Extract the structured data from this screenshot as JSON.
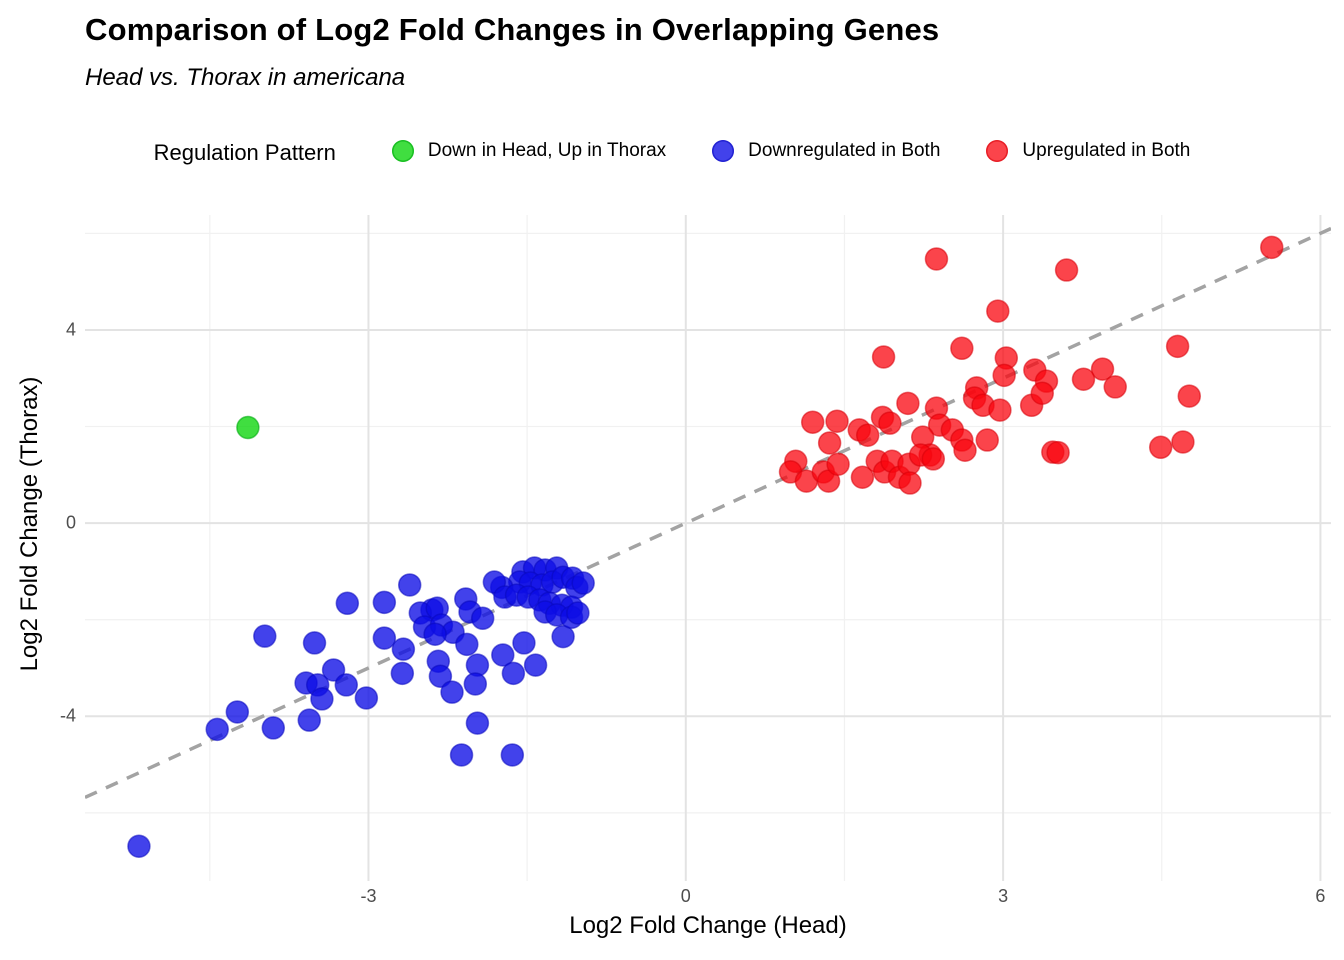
{
  "page": {
    "title": "Comparison of Log2 Fold Changes in Overlapping Genes",
    "subtitle": "Head vs. Thorax in americana"
  },
  "legend": {
    "title": "Regulation Pattern",
    "items": [
      {
        "label": "Down in Head, Up in Thorax",
        "color_key": "green"
      },
      {
        "label": "Downregulated in Both",
        "color_key": "blue"
      },
      {
        "label": "Upregulated in Both",
        "color_key": "red"
      }
    ]
  },
  "chart_data": {
    "type": "scatter",
    "title": "Comparison of Log2 Fold Changes in Overlapping Genes",
    "subtitle": "Head vs. Thorax in americana",
    "xlabel": "Log2 Fold Change (Head)",
    "ylabel": "Log2 Fold Change (Thorax)",
    "xlim": [
      -5.68,
      6.1
    ],
    "ylim": [
      -7.41,
      6.38
    ],
    "x_ticks": [
      -3,
      0,
      3,
      6
    ],
    "y_ticks": [
      -4,
      0,
      4
    ],
    "x_minor": [
      -4.5,
      -1.5,
      1.5,
      4.5
    ],
    "y_minor": [
      -6,
      -2,
      2,
      6
    ],
    "grid": {
      "major_color": "#e3e3e3",
      "minor_color": "#f1f1f1",
      "background": "#ffffff"
    },
    "reference_line": {
      "type": "identity",
      "slope": 1,
      "intercept": 0,
      "style": "dashed",
      "color": "#a3a3a3"
    },
    "point_radius": 11,
    "legend_position": "top",
    "series": [
      {
        "name": "Down in Head, Up in Thorax",
        "fill": "rgba(0,211,0,0.75)",
        "stroke": "rgba(0,170,15,0.6)",
        "points": [
          [
            -4.14,
            1.98
          ]
        ]
      },
      {
        "name": "Downregulated in Both",
        "fill": "rgba(13,13,230,0.78)",
        "stroke": "rgba(10,10,190,0.55)",
        "points": [
          [
            -3.2,
            -1.66
          ],
          [
            -3.98,
            -2.34
          ],
          [
            -3.51,
            -2.48
          ],
          [
            -3.33,
            -3.04
          ],
          [
            -3.59,
            -3.31
          ],
          [
            -3.48,
            -3.35
          ],
          [
            -3.21,
            -3.35
          ],
          [
            -3.02,
            -3.62
          ],
          [
            -3.44,
            -3.64
          ],
          [
            -4.24,
            -3.91
          ],
          [
            -3.56,
            -4.08
          ],
          [
            -4.43,
            -4.27
          ],
          [
            -3.9,
            -4.24
          ],
          [
            -5.17,
            -6.69
          ],
          [
            -2.61,
            -1.28
          ],
          [
            -2.85,
            -1.64
          ],
          [
            -2.4,
            -1.8
          ],
          [
            -2.08,
            -1.57
          ],
          [
            -2.51,
            -1.86
          ],
          [
            -2.35,
            -1.76
          ],
          [
            -2.47,
            -2.15
          ],
          [
            -2.31,
            -2.11
          ],
          [
            -2.2,
            -2.26
          ],
          [
            -2.37,
            -2.3
          ],
          [
            -2.85,
            -2.38
          ],
          [
            -2.67,
            -2.61
          ],
          [
            -2.68,
            -3.11
          ],
          [
            -2.34,
            -2.86
          ],
          [
            -2.32,
            -3.17
          ],
          [
            -2.21,
            -3.5
          ],
          [
            -2.07,
            -2.51
          ],
          [
            -1.97,
            -2.94
          ],
          [
            -1.99,
            -3.33
          ],
          [
            -1.73,
            -2.73
          ],
          [
            -1.63,
            -3.11
          ],
          [
            -1.53,
            -2.48
          ],
          [
            -1.42,
            -2.94
          ],
          [
            -1.16,
            -2.35
          ],
          [
            -1.97,
            -4.14
          ],
          [
            -2.12,
            -4.8
          ],
          [
            -1.64,
            -4.8
          ],
          [
            -2.04,
            -1.84
          ],
          [
            -1.92,
            -1.97
          ],
          [
            -1.54,
            -1.01
          ],
          [
            -1.43,
            -0.93
          ],
          [
            -1.33,
            -0.97
          ],
          [
            -1.22,
            -0.93
          ],
          [
            -1.57,
            -1.22
          ],
          [
            -1.47,
            -1.24
          ],
          [
            -1.36,
            -1.28
          ],
          [
            -1.26,
            -1.22
          ],
          [
            -1.16,
            -1.12
          ],
          [
            -1.07,
            -1.14
          ],
          [
            -1.03,
            -1.33
          ],
          [
            -0.97,
            -1.24
          ],
          [
            -1.74,
            -1.33
          ],
          [
            -1.81,
            -1.22
          ],
          [
            -1.71,
            -1.53
          ],
          [
            -1.6,
            -1.49
          ],
          [
            -1.49,
            -1.53
          ],
          [
            -1.38,
            -1.59
          ],
          [
            -1.29,
            -1.66
          ],
          [
            -1.17,
            -1.7
          ],
          [
            -1.08,
            -1.74
          ],
          [
            -1.33,
            -1.84
          ],
          [
            -1.22,
            -1.9
          ],
          [
            -1.08,
            -1.95
          ],
          [
            -1.02,
            -1.86
          ]
        ]
      },
      {
        "name": "Upregulated in Both",
        "fill": "rgba(250,5,15,0.75)",
        "stroke": "rgba(215,0,10,0.55)",
        "points": [
          [
            2.37,
            5.47
          ],
          [
            2.95,
            4.39
          ],
          [
            3.6,
            5.24
          ],
          [
            5.54,
            5.71
          ],
          [
            1.87,
            3.44
          ],
          [
            2.61,
            3.62
          ],
          [
            3.03,
            3.42
          ],
          [
            3.3,
            3.17
          ],
          [
            3.01,
            3.06
          ],
          [
            3.41,
            2.94
          ],
          [
            2.75,
            2.8
          ],
          [
            4.65,
            3.66
          ],
          [
            3.94,
            3.19
          ],
          [
            3.76,
            2.98
          ],
          [
            4.06,
            2.82
          ],
          [
            1.2,
            2.09
          ],
          [
            1.43,
            2.11
          ],
          [
            1.36,
            1.66
          ],
          [
            1.64,
            1.93
          ],
          [
            1.72,
            1.82
          ],
          [
            1.86,
            2.19
          ],
          [
            1.93,
            2.07
          ],
          [
            2.1,
            2.48
          ],
          [
            2.37,
            2.38
          ],
          [
            2.4,
            2.03
          ],
          [
            2.24,
            1.78
          ],
          [
            2.31,
            1.41
          ],
          [
            2.52,
            1.93
          ],
          [
            2.61,
            1.72
          ],
          [
            2.73,
            2.59
          ],
          [
            2.81,
            2.44
          ],
          [
            2.97,
            2.34
          ],
          [
            2.85,
            1.72
          ],
          [
            3.27,
            2.44
          ],
          [
            3.37,
            2.69
          ],
          [
            3.47,
            1.47
          ],
          [
            1.04,
            1.28
          ],
          [
            0.99,
            1.06
          ],
          [
            1.14,
            0.87
          ],
          [
            1.3,
            1.06
          ],
          [
            1.35,
            0.87
          ],
          [
            1.44,
            1.22
          ],
          [
            1.67,
            0.95
          ],
          [
            1.81,
            1.28
          ],
          [
            1.88,
            1.06
          ],
          [
            1.95,
            1.28
          ],
          [
            2.02,
            0.95
          ],
          [
            2.11,
            1.22
          ],
          [
            2.12,
            0.83
          ],
          [
            2.22,
            1.41
          ],
          [
            2.34,
            1.33
          ],
          [
            2.64,
            1.51
          ],
          [
            3.52,
            1.46
          ],
          [
            4.49,
            1.57
          ],
          [
            4.7,
            1.68
          ],
          [
            4.76,
            2.63
          ]
        ]
      }
    ]
  }
}
